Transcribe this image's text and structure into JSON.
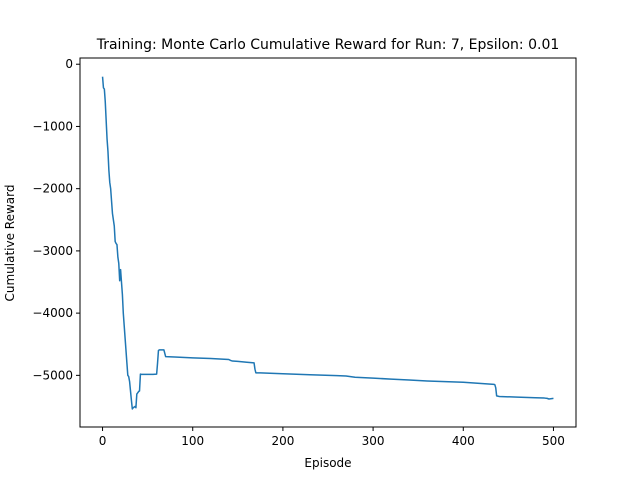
{
  "chart_data": {
    "type": "line",
    "title": "Training: Monte Carlo Cumulative Reward for Run: 7, Epsilon: 0.01",
    "xlabel": "Episode",
    "ylabel": "Cumulative Reward",
    "xlim": [
      -25,
      525
    ],
    "ylim": [
      -5830,
      100
    ],
    "xticks": [
      0,
      100,
      200,
      300,
      400,
      500
    ],
    "yticks": [
      0,
      -1000,
      -2000,
      -3000,
      -4000,
      -5000
    ],
    "ytick_labels": [
      "0",
      "−1000",
      "−2000",
      "−3000",
      "−4000",
      "−5000"
    ],
    "grid": false,
    "legend": "none",
    "series": [
      {
        "color": "#1f77b4",
        "x": [
          0,
          1,
          2,
          3,
          4,
          5,
          6,
          7,
          8,
          9,
          10,
          11,
          12,
          13,
          14,
          15,
          16,
          17,
          18,
          19,
          20,
          21,
          22,
          23,
          24,
          25,
          26,
          27,
          28,
          29,
          30,
          31,
          32,
          33,
          34,
          35,
          36,
          37,
          38,
          39,
          40,
          41,
          42,
          43,
          45,
          48,
          52,
          56,
          60,
          61,
          62,
          63,
          64,
          65,
          66,
          67,
          68,
          70,
          80,
          100,
          120,
          140,
          142,
          144,
          150,
          160,
          168,
          169,
          170,
          171,
          175,
          200,
          230,
          260,
          270,
          280,
          300,
          320,
          340,
          360,
          380,
          400,
          420,
          434,
          435,
          436,
          437,
          440,
          460,
          480,
          490,
          493,
          495,
          500
        ],
        "y": [
          -200,
          -380,
          -400,
          -600,
          -900,
          -1200,
          -1400,
          -1700,
          -1900,
          -2000,
          -2200,
          -2400,
          -2500,
          -2600,
          -2850,
          -2880,
          -2900,
          -3100,
          -3200,
          -3480,
          -3300,
          -3500,
          -3700,
          -4000,
          -4200,
          -4400,
          -4600,
          -4800,
          -5000,
          -5020,
          -5100,
          -5250,
          -5400,
          -5540,
          -5520,
          -5510,
          -5500,
          -5520,
          -5300,
          -5280,
          -5260,
          -5250,
          -4980,
          -4985,
          -4985,
          -4985,
          -4985,
          -4985,
          -4980,
          -4800,
          -4600,
          -4590,
          -4590,
          -4590,
          -4590,
          -4590,
          -4590,
          -4700,
          -4705,
          -4720,
          -4730,
          -4745,
          -4760,
          -4770,
          -4775,
          -4790,
          -4800,
          -4900,
          -4960,
          -4960,
          -4960,
          -4975,
          -4990,
          -5005,
          -5010,
          -5030,
          -5045,
          -5060,
          -5075,
          -5090,
          -5100,
          -5110,
          -5130,
          -5145,
          -5150,
          -5200,
          -5330,
          -5340,
          -5350,
          -5360,
          -5365,
          -5370,
          -5380,
          -5370
        ]
      }
    ]
  }
}
